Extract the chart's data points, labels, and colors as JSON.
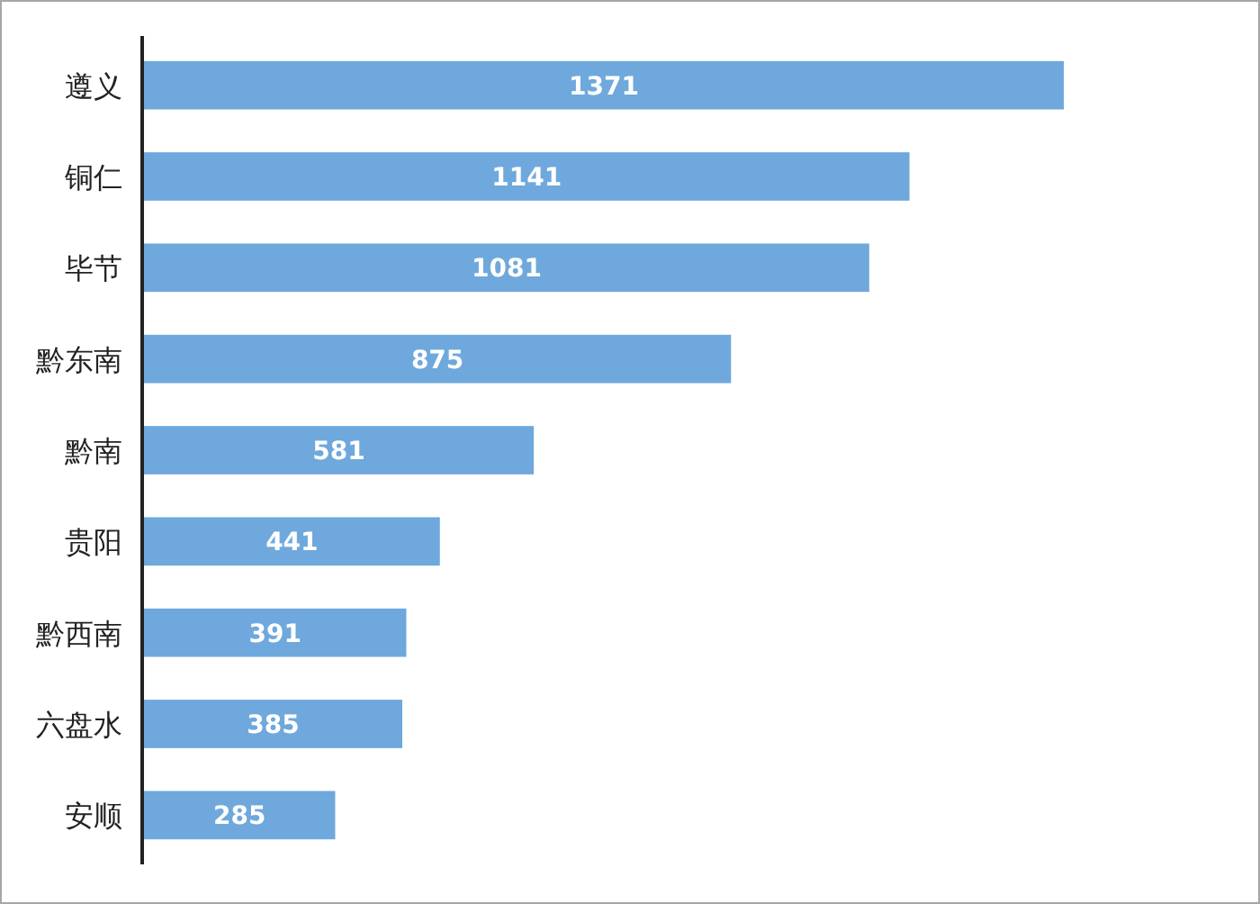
{
  "chart_data": {
    "type": "bar",
    "orientation": "horizontal",
    "categories": [
      "遵义",
      "铜仁",
      "毕节",
      "黔东南",
      "黔南",
      "贵阳",
      "黔西南",
      "六盘水",
      "安顺"
    ],
    "values": [
      1371,
      1141,
      1081,
      875,
      581,
      441,
      391,
      385,
      285
    ],
    "color": "#6fa8dc",
    "data_labels": true
  }
}
